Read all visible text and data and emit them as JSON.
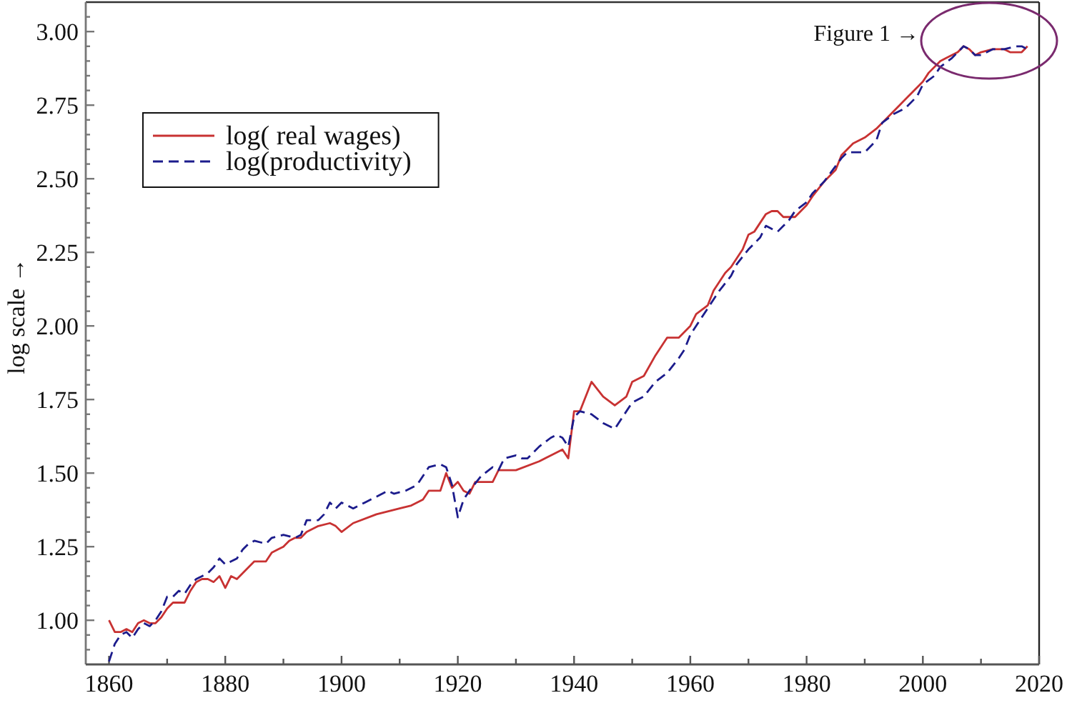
{
  "chart_data": {
    "type": "line",
    "ylabel": "log scale →",
    "annotations": [
      "Figure 1 →"
    ],
    "xlim": [
      1856,
      2020
    ],
    "ylim": [
      0.85,
      3.1
    ],
    "xticks": [
      1860,
      {
        "value": 1870,
        "label": null
      },
      1880,
      {
        "value": 1890,
        "label": null
      },
      1900,
      {
        "value": 1910,
        "label": null
      },
      1920,
      {
        "value": 1930,
        "label": null
      },
      1940,
      {
        "value": 1950,
        "label": null
      },
      1960,
      {
        "value": 1970,
        "label": null
      },
      1980,
      {
        "value": 1990,
        "label": null
      },
      2000,
      {
        "value": 2010,
        "label": null
      },
      2020
    ],
    "yticks": [
      {
        "value": 0.9,
        "label": null
      },
      {
        "value": 0.95,
        "label": null
      },
      {
        "value": 1,
        "label": "1.00"
      },
      {
        "value": 1.05,
        "label": null
      },
      {
        "value": 1.1,
        "label": null
      },
      {
        "value": 1.15,
        "label": null
      },
      {
        "value": 1.2,
        "label": null
      },
      1.25,
      {
        "value": 1.3,
        "label": null
      },
      {
        "value": 1.35,
        "label": null
      },
      {
        "value": 1.4,
        "label": null
      },
      {
        "value": 1.45,
        "label": null
      },
      {
        "value": 1.5,
        "label": "1.50"
      },
      {
        "value": 1.55,
        "label": null
      },
      {
        "value": 1.6,
        "label": null
      },
      {
        "value": 1.65,
        "label": null
      },
      {
        "value": 1.7,
        "label": null
      },
      1.75,
      {
        "value": 1.8,
        "label": null
      },
      {
        "value": 1.85,
        "label": null
      },
      {
        "value": 1.9,
        "label": null
      },
      {
        "value": 1.95,
        "label": null
      },
      {
        "value": 2,
        "label": "2.00"
      },
      {
        "value": 2.05,
        "label": null
      },
      {
        "value": 2.1,
        "label": null
      },
      {
        "value": 2.15,
        "label": null
      },
      {
        "value": 2.2,
        "label": null
      },
      2.25,
      {
        "value": 2.3,
        "label": null
      },
      {
        "value": 2.35,
        "label": null
      },
      {
        "value": 2.4,
        "label": null
      },
      {
        "value": 2.45,
        "label": null
      },
      {
        "value": 2.5,
        "label": "2.50"
      },
      {
        "value": 2.55,
        "label": null
      },
      {
        "value": 2.6,
        "label": null
      },
      {
        "value": 2.65,
        "label": null
      },
      {
        "value": 2.7,
        "label": null
      },
      2.75,
      {
        "value": 2.8,
        "label": null
      },
      {
        "value": 2.85,
        "label": null
      },
      {
        "value": 2.9,
        "label": null
      },
      {
        "value": 2.95,
        "label": null
      },
      {
        "value": 3,
        "label": "3.00"
      },
      {
        "value": 3.05,
        "label": null
      }
    ],
    "legend": "top left",
    "series": [
      {
        "name": "log( real wages)",
        "color": "#c83232",
        "line_style": "solid",
        "x": [
          1860,
          1861,
          1862,
          1863,
          1864,
          1865,
          1866,
          1867,
          1868,
          1869,
          1870,
          1871,
          1873,
          1874,
          1875,
          1876,
          1877,
          1878,
          1879,
          1880,
          1881,
          1882,
          1883,
          1884,
          1885,
          1887,
          1888,
          1889,
          1890,
          1891,
          1892,
          1893,
          1894,
          1896,
          1898,
          1899,
          1900,
          1902,
          1906,
          1910,
          1912,
          1914,
          1915,
          1917,
          1918,
          1919,
          1920,
          1921,
          1922,
          1923,
          1926,
          1927,
          1930,
          1934,
          1936,
          1938,
          1939,
          1940,
          1941,
          1943,
          1945,
          1947,
          1949,
          1950,
          1952,
          1954,
          1956,
          1958,
          1960,
          1961,
          1963,
          1964,
          1966,
          1967,
          1969,
          1970,
          1971,
          1973,
          1974,
          1975,
          1976,
          1978,
          1980,
          1981,
          1983,
          1985,
          1986,
          1988,
          1990,
          1992,
          1994,
          1996,
          1998,
          2000,
          2001,
          2003,
          2004,
          2006,
          2007,
          2008,
          2009,
          2010,
          2012,
          2014,
          2015,
          2017,
          2018
        ],
        "values": [
          1.0,
          0.96,
          0.96,
          0.97,
          0.96,
          0.99,
          1.0,
          0.99,
          0.99,
          1.01,
          1.04,
          1.06,
          1.06,
          1.1,
          1.13,
          1.14,
          1.14,
          1.13,
          1.15,
          1.11,
          1.15,
          1.14,
          1.16,
          1.18,
          1.2,
          1.2,
          1.23,
          1.24,
          1.25,
          1.27,
          1.28,
          1.28,
          1.3,
          1.32,
          1.33,
          1.32,
          1.3,
          1.33,
          1.36,
          1.38,
          1.39,
          1.41,
          1.44,
          1.44,
          1.5,
          1.45,
          1.47,
          1.44,
          1.43,
          1.47,
          1.47,
          1.51,
          1.51,
          1.54,
          1.56,
          1.58,
          1.55,
          1.71,
          1.71,
          1.81,
          1.76,
          1.73,
          1.76,
          1.81,
          1.83,
          1.9,
          1.96,
          1.96,
          2.0,
          2.04,
          2.07,
          2.12,
          2.18,
          2.2,
          2.26,
          2.31,
          2.32,
          2.38,
          2.39,
          2.39,
          2.37,
          2.37,
          2.41,
          2.44,
          2.49,
          2.53,
          2.58,
          2.62,
          2.64,
          2.67,
          2.71,
          2.75,
          2.79,
          2.83,
          2.86,
          2.9,
          2.91,
          2.93,
          2.95,
          2.94,
          2.92,
          2.93,
          2.94,
          2.94,
          2.93,
          2.93,
          2.95
        ]
      },
      {
        "name": "log(productivity)",
        "color": "#1c1c8c",
        "line_style": "dashed",
        "x": [
          1860,
          1861,
          1862,
          1863,
          1864,
          1865,
          1866,
          1867,
          1868,
          1869,
          1870,
          1871,
          1872,
          1873,
          1874,
          1875,
          1876,
          1877,
          1878,
          1879,
          1880,
          1881,
          1882,
          1883,
          1884,
          1885,
          1887,
          1888,
          1890,
          1892,
          1893,
          1894,
          1896,
          1897,
          1898,
          1899,
          1900,
          1902,
          1904,
          1906,
          1908,
          1909,
          1911,
          1913,
          1915,
          1917,
          1918,
          1919,
          1920,
          1921,
          1922,
          1924,
          1926,
          1927,
          1928,
          1930,
          1931,
          1932,
          1934,
          1936,
          1937,
          1938,
          1939,
          1940,
          1941,
          1943,
          1945,
          1947,
          1948,
          1950,
          1952,
          1954,
          1956,
          1958,
          1959,
          1960,
          1962,
          1963,
          1965,
          1967,
          1968,
          1970,
          1972,
          1973,
          1975,
          1977,
          1978,
          1980,
          1981,
          1983,
          1986,
          1987,
          1990,
          1992,
          1993,
          1995,
          1997,
          1999,
          2000,
          2002,
          2003,
          2005,
          2007,
          2008,
          2009,
          2010,
          2012,
          2014,
          2016,
          2017,
          2018
        ],
        "values": [
          0.86,
          0.92,
          0.95,
          0.96,
          0.94,
          0.97,
          0.99,
          0.98,
          1.0,
          1.03,
          1.08,
          1.08,
          1.1,
          1.09,
          1.12,
          1.14,
          1.15,
          1.16,
          1.18,
          1.21,
          1.19,
          1.2,
          1.21,
          1.24,
          1.26,
          1.27,
          1.26,
          1.28,
          1.29,
          1.28,
          1.29,
          1.34,
          1.34,
          1.36,
          1.4,
          1.38,
          1.4,
          1.38,
          1.4,
          1.42,
          1.44,
          1.43,
          1.44,
          1.46,
          1.52,
          1.53,
          1.52,
          1.46,
          1.35,
          1.41,
          1.44,
          1.49,
          1.52,
          1.51,
          1.55,
          1.56,
          1.55,
          1.55,
          1.59,
          1.62,
          1.63,
          1.62,
          1.59,
          1.69,
          1.71,
          1.7,
          1.67,
          1.65,
          1.68,
          1.74,
          1.76,
          1.81,
          1.84,
          1.89,
          1.92,
          1.97,
          2.03,
          2.06,
          2.12,
          2.17,
          2.21,
          2.26,
          2.3,
          2.34,
          2.32,
          2.36,
          2.39,
          2.42,
          2.45,
          2.49,
          2.57,
          2.59,
          2.59,
          2.63,
          2.69,
          2.72,
          2.74,
          2.78,
          2.82,
          2.85,
          2.88,
          2.91,
          2.95,
          2.94,
          2.92,
          2.92,
          2.94,
          2.94,
          2.95,
          2.95,
          2.94
        ]
      }
    ]
  }
}
